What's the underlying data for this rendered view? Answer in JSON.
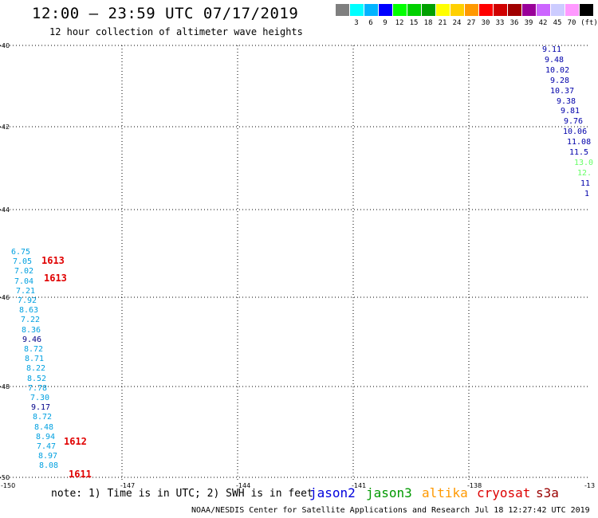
{
  "header": {
    "title": "12:00 — 23:59 UTC 07/17/2019",
    "subtitle": "12 hour collection of altimeter wave heights"
  },
  "legend": {
    "unit": "(ft)",
    "swatches": [
      {
        "color": "#7f7f7f",
        "label": ""
      },
      {
        "color": "#00ffff",
        "label": "3"
      },
      {
        "color": "#00b4ff",
        "label": "6"
      },
      {
        "color": "#0000ff",
        "label": "9"
      },
      {
        "color": "#00ff00",
        "label": "12"
      },
      {
        "color": "#00d000",
        "label": "15"
      },
      {
        "color": "#00a000",
        "label": "18"
      },
      {
        "color": "#ffff00",
        "label": "21"
      },
      {
        "color": "#ffd000",
        "label": "24"
      },
      {
        "color": "#ff9900",
        "label": "27"
      },
      {
        "color": "#ff0000",
        "label": "30"
      },
      {
        "color": "#d00000",
        "label": "33"
      },
      {
        "color": "#a00000",
        "label": "36"
      },
      {
        "color": "#990099",
        "label": "39"
      },
      {
        "color": "#cc66ff",
        "label": "42"
      },
      {
        "color": "#ccccff",
        "label": "45"
      },
      {
        "color": "#ff99ff",
        "label": "70"
      },
      {
        "color": "#000000",
        "label": ""
      }
    ]
  },
  "axes": {
    "lat_labels": [
      "-40",
      "-42",
      "-44",
      "-46",
      "-48",
      "-50"
    ],
    "lon_labels": [
      "-150",
      "-147",
      "-144",
      "-141",
      "-138",
      "-13"
    ]
  },
  "observations": {
    "right_track": [
      {
        "v": "9.11",
        "c": "#0000aa"
      },
      {
        "v": "9.48",
        "c": "#0000aa"
      },
      {
        "v": "10.02",
        "c": "#0000aa"
      },
      {
        "v": "9.28",
        "c": "#0000aa"
      },
      {
        "v": "10.37",
        "c": "#0000aa"
      },
      {
        "v": "9.38",
        "c": "#0000aa"
      },
      {
        "v": "9.81",
        "c": "#0000aa"
      },
      {
        "v": "9.76",
        "c": "#0000aa"
      },
      {
        "v": "10.06",
        "c": "#0000aa"
      },
      {
        "v": "11.08",
        "c": "#0000aa"
      },
      {
        "v": "11.5",
        "c": "#0000aa"
      },
      {
        "v": "13.0",
        "c": "#66ff66"
      },
      {
        "v": "12.",
        "c": "#66ff66"
      },
      {
        "v": "11",
        "c": "#0000aa"
      },
      {
        "v": "1",
        "c": "#0000aa"
      }
    ],
    "left_track": [
      {
        "v": "6.75",
        "c": "#00a0e0"
      },
      {
        "v": "7.05",
        "c": "#00a0e0"
      },
      {
        "v": "7.02",
        "c": "#00a0e0"
      },
      {
        "v": "7.04",
        "c": "#00a0e0"
      },
      {
        "v": "7.21",
        "c": "#00a0e0"
      },
      {
        "v": "7.92",
        "c": "#00a0e0"
      },
      {
        "v": "8.63",
        "c": "#00a0e0"
      },
      {
        "v": "7.22",
        "c": "#00a0e0"
      },
      {
        "v": "8.36",
        "c": "#00a0e0"
      },
      {
        "v": "9.46",
        "c": "#000088"
      },
      {
        "v": "8.72",
        "c": "#00a0e0"
      },
      {
        "v": "8.71",
        "c": "#00a0e0"
      },
      {
        "v": "8.22",
        "c": "#00a0e0"
      },
      {
        "v": "8.52",
        "c": "#00a0e0"
      },
      {
        "v": "7.78",
        "c": "#00a0e0"
      },
      {
        "v": "7.30",
        "c": "#00a0e0"
      },
      {
        "v": "9.17",
        "c": "#000088"
      },
      {
        "v": "8.72",
        "c": "#00a0e0"
      },
      {
        "v": "8.48",
        "c": "#00a0e0"
      },
      {
        "v": "8.94",
        "c": "#00a0e0"
      },
      {
        "v": "7.47",
        "c": "#00a0e0"
      },
      {
        "v": "8.97",
        "c": "#00a0e0"
      },
      {
        "v": "8.08",
        "c": "#00a0e0"
      }
    ],
    "pass_labels": [
      "1613",
      "1613",
      "1612",
      "1611"
    ]
  },
  "footer": {
    "note": "note: 1) Time is in UTC; 2) SWH is in feet",
    "satellites": [
      {
        "name": "jason2",
        "color": "#0000dd"
      },
      {
        "name": "jason3",
        "color": "#009900"
      },
      {
        "name": "altika",
        "color": "#ff9900"
      },
      {
        "name": "cryosat",
        "color": "#dd0000"
      },
      {
        "name": "s3a",
        "color": "#990000"
      }
    ],
    "credit": "NOAA/NESDIS Center for Satellite Applications and Research    Jul 18 12:27:42 UTC 2019"
  }
}
